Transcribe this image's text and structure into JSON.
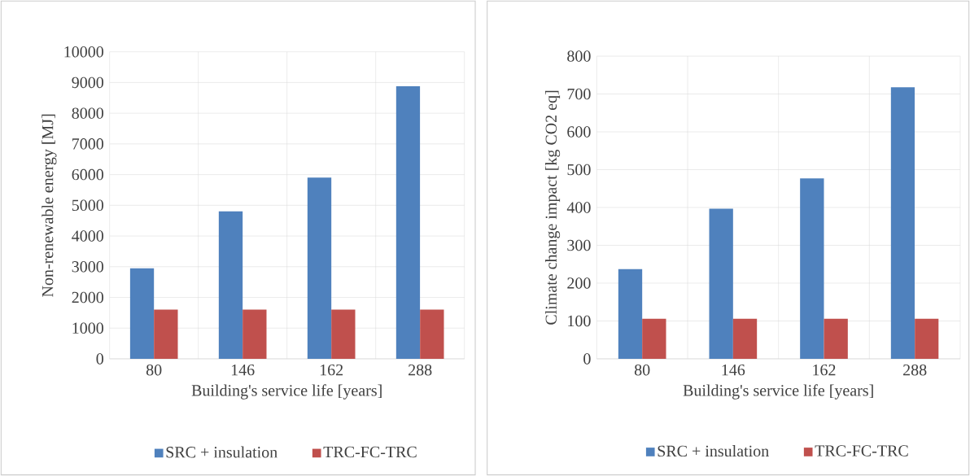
{
  "chart_data": [
    {
      "type": "bar",
      "categories": [
        "80",
        "146",
        "162",
        "288"
      ],
      "xlabel": "Building's service life [years]",
      "ylabel": "Non-renewable energy [MJ]",
      "ylim": [
        0,
        10000
      ],
      "yticks": [
        0,
        1000,
        2000,
        3000,
        4000,
        5000,
        6000,
        7000,
        8000,
        9000,
        10000
      ],
      "grid": true,
      "legend": "bottom",
      "series": [
        {
          "name": "SRC + insulation",
          "color": "#4f81bd",
          "values": [
            2950,
            4800,
            5900,
            8880
          ]
        },
        {
          "name": "TRC-FC-TRC",
          "color": "#c0504d",
          "values": [
            1600,
            1600,
            1600,
            1600
          ]
        }
      ]
    },
    {
      "type": "bar",
      "categories": [
        "80",
        "146",
        "162",
        "288"
      ],
      "xlabel": "Building's service life [years]",
      "ylabel": "Climate change impact [kg CO2 eq]",
      "ylim": [
        0,
        800
      ],
      "yticks": [
        0,
        100,
        200,
        300,
        400,
        500,
        600,
        700,
        800
      ],
      "grid": true,
      "legend": "bottom",
      "series": [
        {
          "name": "SRC + insulation",
          "color": "#4f81bd",
          "values": [
            237,
            397,
            477,
            718
          ]
        },
        {
          "name": "TRC-FC-TRC",
          "color": "#c0504d",
          "values": [
            106,
            106,
            106,
            106
          ]
        }
      ]
    }
  ]
}
